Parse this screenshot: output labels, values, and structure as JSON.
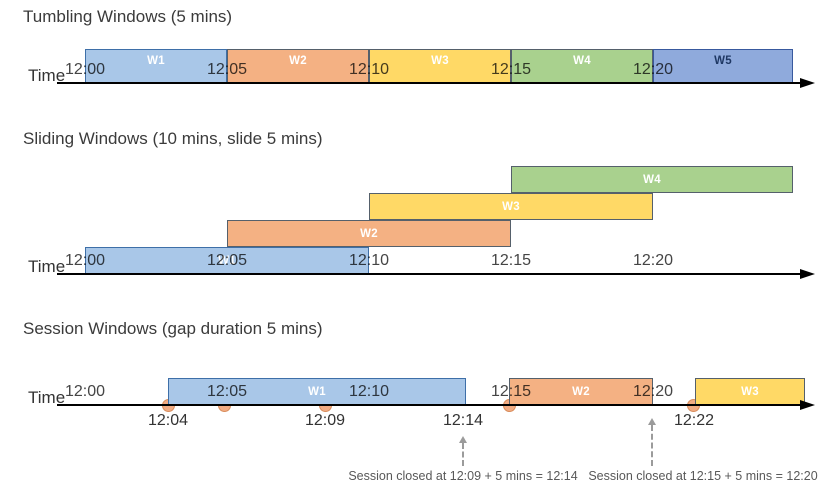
{
  "palette": {
    "blue_light": {
      "fill": "#A9C7E8",
      "stroke": "#3E6FA8",
      "text": "#FFFFFF"
    },
    "orange": {
      "fill": "#F4B183",
      "stroke": "#55606B",
      "text": "#FFFFFF"
    },
    "yellow": {
      "fill": "#FFD966",
      "stroke": "#55606B",
      "text": "#FFFFFF"
    },
    "green": {
      "fill": "#A9D18E",
      "stroke": "#55606B",
      "text": "#FFFFFF"
    },
    "blue": {
      "fill": "#8FAADC",
      "stroke": "#38599E",
      "text": "#1F3864"
    },
    "event_dot_fill": "#F2AC84",
    "event_dot_stroke": "#D98D5C",
    "axis": "#000000",
    "tick_text": "#454545",
    "event_label_text": "#333333",
    "annotation_text": "#595959",
    "close_arrow": "#9B9B9B",
    "title_text": "#3B3B3B"
  },
  "sections": [
    {
      "title": "Tumbling Windows (5 mins)",
      "time_label": "Time",
      "ticks": [
        "12:00",
        "12:05",
        "12:10",
        "12:15",
        "12:20"
      ],
      "windows": [
        {
          "label": "W1",
          "color": "blue_light"
        },
        {
          "label": "W2",
          "color": "orange"
        },
        {
          "label": "W3",
          "color": "yellow"
        },
        {
          "label": "W4",
          "color": "green"
        },
        {
          "label": "W5",
          "color": "blue"
        }
      ]
    },
    {
      "title": "Sliding Windows (10 mins, slide 5 mins)",
      "time_label": "Time",
      "ticks": [
        "12:00",
        "12:05",
        "12:10",
        "12:15",
        "12:20"
      ],
      "windows": [
        {
          "label": "W1",
          "color": "blue_light"
        },
        {
          "label": "W2",
          "color": "orange"
        },
        {
          "label": "W3",
          "color": "yellow"
        },
        {
          "label": "W4",
          "color": "green"
        }
      ]
    },
    {
      "title": "Session Windows (gap duration 5 mins)",
      "time_label": "Time",
      "ticks": [
        "12:00",
        "12:05",
        "12:10",
        "12:15",
        "12:20"
      ],
      "windows": [
        {
          "label": "W1",
          "color": "blue_light"
        },
        {
          "label": "W2",
          "color": "orange"
        },
        {
          "label": "W3",
          "color": "yellow"
        }
      ],
      "event_labels": [
        "12:04",
        "12:09",
        "12:14",
        "12:22"
      ],
      "annotations": [
        "Session closed at 12:09 + 5 mins = 12:14",
        "Session closed at 12:15 + 5 mins = 12:20"
      ]
    }
  ]
}
